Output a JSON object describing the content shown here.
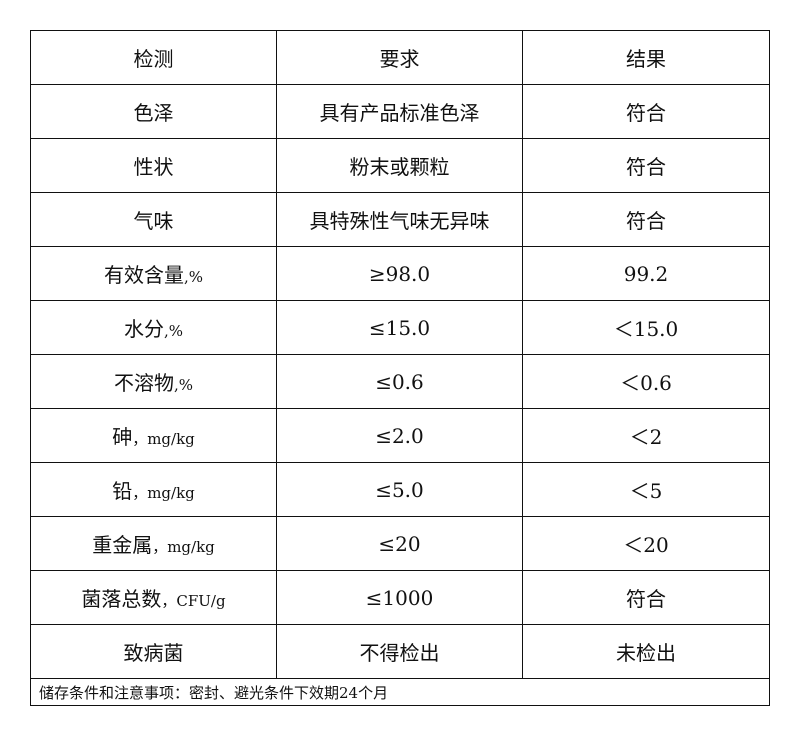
{
  "table": {
    "headers": [
      "检测",
      "要求",
      "结果"
    ],
    "rows": [
      {
        "item": "色泽",
        "unit": "",
        "requirement": "具有产品标准色泽",
        "result": "符合"
      },
      {
        "item": "性状",
        "unit": "",
        "requirement": "粉末或颗粒",
        "result": "符合"
      },
      {
        "item": "气味",
        "unit": "",
        "requirement": "具特殊性气味无异味",
        "result": "符合"
      },
      {
        "item": "有效含量",
        "unit": ",%",
        "requirement": "≥98.0",
        "result": "99.2"
      },
      {
        "item": "水分",
        "unit": ",%",
        "requirement": "≤15.0",
        "result": "＜15.0"
      },
      {
        "item": "不溶物",
        "unit": ",%",
        "requirement": "≤0.6",
        "result": "＜0.6"
      },
      {
        "item": "砷",
        "unit": "，mg/kg",
        "requirement": "≤2.0",
        "result": "＜2"
      },
      {
        "item": "铅",
        "unit": "，mg/kg",
        "requirement": "≤5.0",
        "result": "＜5"
      },
      {
        "item": "重金属",
        "unit": "，mg/kg",
        "requirement": "≤20",
        "result": "＜20"
      },
      {
        "item": "菌落总数",
        "unit": "，CFU/g",
        "requirement": "≤1000",
        "result": "符合"
      },
      {
        "item": "致病菌",
        "unit": "",
        "requirement": "不得检出",
        "result": "未检出"
      }
    ],
    "footer": "储存条件和注意事项：密封、避光条件下效期24个月"
  }
}
